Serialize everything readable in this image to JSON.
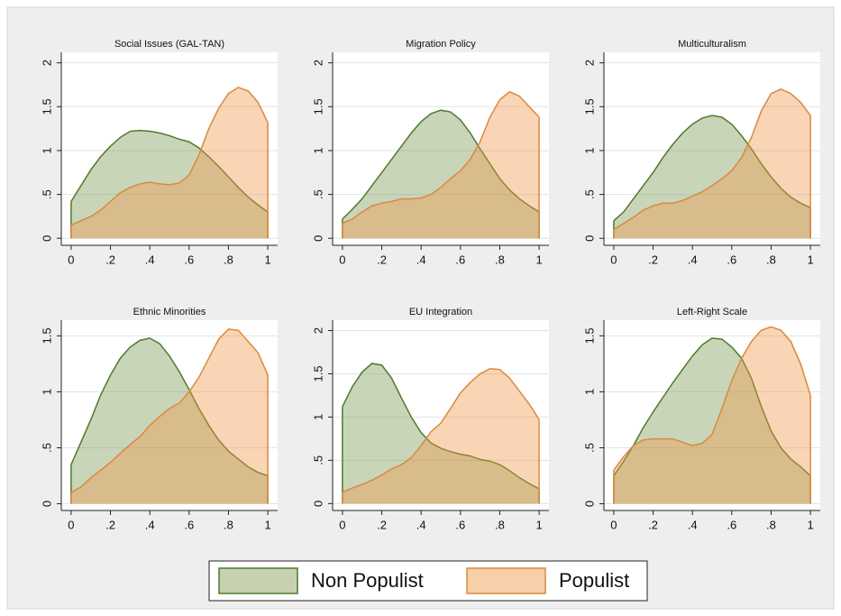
{
  "chart_data": [
    {
      "type": "area",
      "title": "Social Issues (GAL-TAN)",
      "x": [
        0,
        0.05,
        0.1,
        0.15,
        0.2,
        0.25,
        0.3,
        0.35,
        0.4,
        0.45,
        0.5,
        0.55,
        0.6,
        0.65,
        0.7,
        0.75,
        0.8,
        0.85,
        0.9,
        0.95,
        1
      ],
      "series": [
        {
          "name": "Non Populist",
          "color": "#4f7a28",
          "values": [
            0.42,
            0.6,
            0.78,
            0.93,
            1.05,
            1.15,
            1.22,
            1.23,
            1.22,
            1.2,
            1.17,
            1.13,
            1.1,
            1.03,
            0.93,
            0.82,
            0.7,
            0.58,
            0.47,
            0.38,
            0.3
          ]
        },
        {
          "name": "Populist",
          "color": "#d88a3e",
          "values": [
            0.15,
            0.2,
            0.25,
            0.32,
            0.42,
            0.52,
            0.58,
            0.62,
            0.64,
            0.62,
            0.61,
            0.63,
            0.72,
            0.95,
            1.25,
            1.48,
            1.65,
            1.72,
            1.68,
            1.55,
            1.32
          ]
        }
      ],
      "xlim": [
        -0.05,
        1.05
      ],
      "xticks": [
        0,
        {
          "value": 0.2,
          "label": ".2"
        },
        {
          "value": 0.4,
          "label": ".4"
        },
        {
          "value": 0.6,
          "label": ".6"
        },
        {
          "value": 0.8,
          "label": ".8"
        },
        1
      ],
      "ylim": [
        -0.08,
        2.12
      ],
      "yticks": [
        0,
        {
          "value": 0.5,
          "label": ".5"
        },
        1,
        1.5,
        2
      ],
      "grid": true
    },
    {
      "type": "area",
      "title": "Migration Policy",
      "x": [
        0,
        0.05,
        0.1,
        0.15,
        0.2,
        0.25,
        0.3,
        0.35,
        0.4,
        0.45,
        0.5,
        0.55,
        0.6,
        0.65,
        0.7,
        0.75,
        0.8,
        0.85,
        0.9,
        0.95,
        1
      ],
      "series": [
        {
          "name": "Non Populist",
          "color": "#4f7a28",
          "values": [
            0.22,
            0.33,
            0.45,
            0.6,
            0.75,
            0.9,
            1.05,
            1.2,
            1.33,
            1.42,
            1.46,
            1.44,
            1.35,
            1.2,
            1.02,
            0.85,
            0.68,
            0.55,
            0.45,
            0.37,
            0.3
          ]
        },
        {
          "name": "Populist",
          "color": "#d88a3e",
          "values": [
            0.17,
            0.22,
            0.3,
            0.37,
            0.4,
            0.42,
            0.45,
            0.45,
            0.46,
            0.5,
            0.58,
            0.68,
            0.77,
            0.9,
            1.1,
            1.38,
            1.58,
            1.67,
            1.62,
            1.5,
            1.38
          ]
        }
      ],
      "xlim": [
        -0.05,
        1.05
      ],
      "xticks": [
        0,
        {
          "value": 0.2,
          "label": ".2"
        },
        {
          "value": 0.4,
          "label": ".4"
        },
        {
          "value": 0.6,
          "label": ".6"
        },
        {
          "value": 0.8,
          "label": ".8"
        },
        1
      ],
      "ylim": [
        -0.08,
        2.12
      ],
      "yticks": [
        0,
        {
          "value": 0.5,
          "label": ".5"
        },
        1,
        1.5,
        2
      ],
      "grid": true
    },
    {
      "type": "area",
      "title": "Multiculturalism",
      "x": [
        0,
        0.05,
        0.1,
        0.15,
        0.2,
        0.25,
        0.3,
        0.35,
        0.4,
        0.45,
        0.5,
        0.55,
        0.6,
        0.65,
        0.7,
        0.75,
        0.8,
        0.85,
        0.9,
        0.95,
        1
      ],
      "series": [
        {
          "name": "Non Populist",
          "color": "#4f7a28",
          "values": [
            0.2,
            0.3,
            0.45,
            0.6,
            0.75,
            0.92,
            1.07,
            1.2,
            1.3,
            1.37,
            1.4,
            1.38,
            1.3,
            1.17,
            1.02,
            0.85,
            0.7,
            0.57,
            0.47,
            0.4,
            0.35
          ]
        },
        {
          "name": "Populist",
          "color": "#d88a3e",
          "values": [
            0.1,
            0.17,
            0.24,
            0.32,
            0.37,
            0.4,
            0.4,
            0.43,
            0.48,
            0.53,
            0.6,
            0.68,
            0.77,
            0.92,
            1.15,
            1.45,
            1.65,
            1.7,
            1.65,
            1.55,
            1.4
          ]
        }
      ],
      "xlim": [
        -0.05,
        1.05
      ],
      "xticks": [
        0,
        {
          "value": 0.2,
          "label": ".2"
        },
        {
          "value": 0.4,
          "label": ".4"
        },
        {
          "value": 0.6,
          "label": ".6"
        },
        {
          "value": 0.8,
          "label": ".8"
        },
        1
      ],
      "ylim": [
        -0.08,
        2.12
      ],
      "yticks": [
        0,
        {
          "value": 0.5,
          "label": ".5"
        },
        1,
        1.5,
        2
      ],
      "grid": true
    },
    {
      "type": "area",
      "title": "Ethnic Minorities",
      "x": [
        0,
        0.05,
        0.1,
        0.15,
        0.2,
        0.25,
        0.3,
        0.35,
        0.4,
        0.45,
        0.5,
        0.55,
        0.6,
        0.65,
        0.7,
        0.75,
        0.8,
        0.85,
        0.9,
        0.95,
        1
      ],
      "series": [
        {
          "name": "Non Populist",
          "color": "#4f7a28",
          "values": [
            0.35,
            0.55,
            0.75,
            0.97,
            1.15,
            1.3,
            1.4,
            1.46,
            1.48,
            1.43,
            1.32,
            1.18,
            1.02,
            0.85,
            0.7,
            0.57,
            0.47,
            0.4,
            0.33,
            0.28,
            0.25
          ]
        },
        {
          "name": "Populist",
          "color": "#d88a3e",
          "values": [
            0.1,
            0.15,
            0.23,
            0.3,
            0.37,
            0.45,
            0.53,
            0.6,
            0.7,
            0.78,
            0.85,
            0.9,
            1.0,
            1.13,
            1.3,
            1.47,
            1.56,
            1.55,
            1.45,
            1.35,
            1.15
          ]
        }
      ],
      "xlim": [
        -0.05,
        1.05
      ],
      "xticks": [
        0,
        {
          "value": 0.2,
          "label": ".2"
        },
        {
          "value": 0.4,
          "label": ".4"
        },
        {
          "value": 0.6,
          "label": ".6"
        },
        {
          "value": 0.8,
          "label": ".8"
        },
        1
      ],
      "ylim": [
        -0.06,
        1.64
      ],
      "yticks": [
        0,
        {
          "value": 0.5,
          "label": ".5"
        },
        1,
        1.5
      ],
      "grid": true
    },
    {
      "type": "area",
      "title": "EU Integration",
      "x": [
        0,
        0.05,
        0.1,
        0.15,
        0.2,
        0.25,
        0.3,
        0.35,
        0.4,
        0.45,
        0.5,
        0.55,
        0.6,
        0.65,
        0.7,
        0.75,
        0.8,
        0.85,
        0.9,
        0.95,
        1
      ],
      "series": [
        {
          "name": "Non Populist",
          "color": "#4f7a28",
          "values": [
            1.12,
            1.35,
            1.52,
            1.62,
            1.6,
            1.45,
            1.22,
            1.0,
            0.82,
            0.7,
            0.64,
            0.6,
            0.57,
            0.55,
            0.51,
            0.49,
            0.45,
            0.38,
            0.3,
            0.23,
            0.17
          ]
        },
        {
          "name": "Populist",
          "color": "#d88a3e",
          "values": [
            0.13,
            0.18,
            0.22,
            0.27,
            0.33,
            0.4,
            0.45,
            0.53,
            0.67,
            0.83,
            0.93,
            1.1,
            1.28,
            1.4,
            1.5,
            1.56,
            1.55,
            1.45,
            1.3,
            1.15,
            0.97
          ]
        }
      ],
      "xlim": [
        -0.05,
        1.05
      ],
      "xticks": [
        0,
        {
          "value": 0.2,
          "label": ".2"
        },
        {
          "value": 0.4,
          "label": ".4"
        },
        {
          "value": 0.6,
          "label": ".6"
        },
        {
          "value": 0.8,
          "label": ".8"
        },
        1
      ],
      "ylim": [
        -0.08,
        2.12
      ],
      "yticks": [
        0,
        {
          "value": 0.5,
          "label": ".5"
        },
        1,
        1.5,
        2
      ],
      "grid": true
    },
    {
      "type": "area",
      "title": "Left-Right Scale",
      "x": [
        0,
        0.05,
        0.1,
        0.15,
        0.2,
        0.25,
        0.3,
        0.35,
        0.4,
        0.45,
        0.5,
        0.55,
        0.6,
        0.65,
        0.7,
        0.75,
        0.8,
        0.85,
        0.9,
        0.95,
        1
      ],
      "series": [
        {
          "name": "Non Populist",
          "color": "#4f7a28",
          "values": [
            0.25,
            0.38,
            0.52,
            0.68,
            0.82,
            0.95,
            1.08,
            1.2,
            1.32,
            1.42,
            1.48,
            1.47,
            1.4,
            1.3,
            1.12,
            0.87,
            0.65,
            0.5,
            0.4,
            0.33,
            0.25
          ]
        },
        {
          "name": "Populist",
          "color": "#d88a3e",
          "values": [
            0.3,
            0.42,
            0.52,
            0.57,
            0.58,
            0.58,
            0.58,
            0.55,
            0.52,
            0.54,
            0.62,
            0.85,
            1.1,
            1.3,
            1.45,
            1.55,
            1.58,
            1.55,
            1.45,
            1.25,
            0.97
          ]
        }
      ],
      "xlim": [
        -0.05,
        1.05
      ],
      "xticks": [
        0,
        {
          "value": 0.2,
          "label": ".2"
        },
        {
          "value": 0.4,
          "label": ".4"
        },
        {
          "value": 0.6,
          "label": ".6"
        },
        {
          "value": 0.8,
          "label": ".8"
        },
        1
      ],
      "ylim": [
        -0.06,
        1.64
      ],
      "yticks": [
        0,
        {
          "value": 0.5,
          "label": ".5"
        },
        1,
        1.5
      ],
      "grid": true
    }
  ]
}
